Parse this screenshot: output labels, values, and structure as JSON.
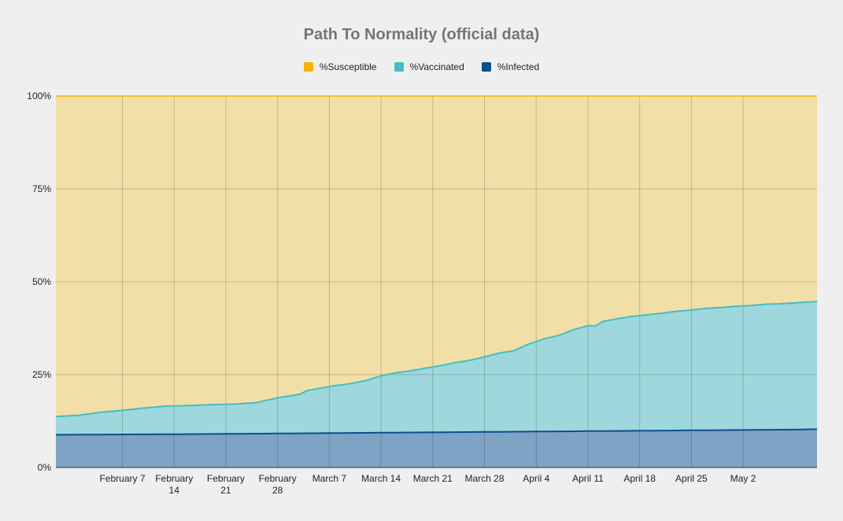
{
  "chart_data": {
    "type": "area",
    "stacked": true,
    "title": "Path To Normality (official data)",
    "xlabel": "",
    "ylabel": "",
    "ylim": [
      0,
      100
    ],
    "y_ticks": [
      "0%",
      "25%",
      "50%",
      "75%",
      "100%"
    ],
    "x_ticks": [
      [
        "February 7"
      ],
      [
        "February",
        "14"
      ],
      [
        "February",
        "21"
      ],
      [
        "February",
        "28"
      ],
      [
        "March 7"
      ],
      [
        "March 14"
      ],
      [
        "March 21"
      ],
      [
        "March 28"
      ],
      [
        "April 4"
      ],
      [
        "April 11"
      ],
      [
        "April 18"
      ],
      [
        "April 25"
      ],
      [
        "May 2"
      ]
    ],
    "x_start": "January 29",
    "x_end": "May 9",
    "grid": true,
    "legend_position": "top-center",
    "series": [
      {
        "name": "%Infected",
        "color": "#0b4f8c",
        "fill": "#7fa3c5",
        "points": [
          [
            0,
            8.8
          ],
          [
            20,
            9.0
          ],
          [
            40,
            9.3
          ],
          [
            60,
            9.6
          ],
          [
            80,
            9.9
          ],
          [
            100,
            10.2
          ],
          [
            103,
            10.3
          ]
        ]
      },
      {
        "name": "%Vaccinated",
        "color": "#46bdc6",
        "fill": "#9ed8dc",
        "points": [
          [
            0,
            4.9
          ],
          [
            3,
            5.2
          ],
          [
            6,
            6.0
          ],
          [
            9,
            6.5
          ],
          [
            12,
            7.1
          ],
          [
            15,
            7.6
          ],
          [
            18,
            7.7
          ],
          [
            21,
            7.9
          ],
          [
            24,
            8.0
          ],
          [
            27,
            8.3
          ],
          [
            30,
            9.6
          ],
          [
            33,
            10.5
          ],
          [
            34,
            11.5
          ],
          [
            36,
            12.2
          ],
          [
            38,
            12.8
          ],
          [
            40,
            13.3
          ],
          [
            42,
            14.1
          ],
          [
            44,
            15.3
          ],
          [
            46,
            16.1
          ],
          [
            48,
            16.6
          ],
          [
            50,
            17.3
          ],
          [
            52,
            17.9
          ],
          [
            54,
            18.7
          ],
          [
            56,
            19.3
          ],
          [
            58,
            20.2
          ],
          [
            60,
            21.2
          ],
          [
            62,
            21.8
          ],
          [
            64,
            23.6
          ],
          [
            66,
            24.9
          ],
          [
            68,
            25.8
          ],
          [
            70,
            27.3
          ],
          [
            72,
            28.4
          ],
          [
            73,
            28.3
          ],
          [
            74,
            29.5
          ],
          [
            76,
            30.2
          ],
          [
            78,
            30.8
          ],
          [
            80,
            31.2
          ],
          [
            82,
            31.6
          ],
          [
            84,
            32.1
          ],
          [
            86,
            32.4
          ],
          [
            88,
            32.8
          ],
          [
            90,
            33.0
          ],
          [
            92,
            33.3
          ],
          [
            94,
            33.5
          ],
          [
            96,
            33.8
          ],
          [
            98,
            33.9
          ],
          [
            100,
            34.1
          ],
          [
            103,
            34.4
          ]
        ]
      },
      {
        "name": "%Susceptible",
        "color": "#f4b400",
        "fill": "#f2dfa7",
        "fills_to_top": true
      }
    ],
    "legend_order": [
      "%Susceptible",
      "%Vaccinated",
      "%Infected"
    ]
  }
}
